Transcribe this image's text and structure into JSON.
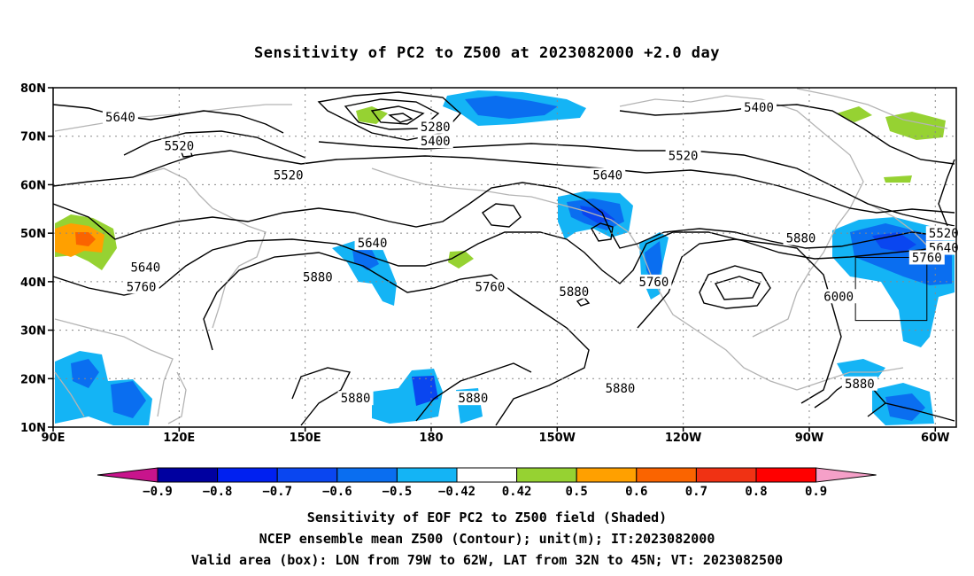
{
  "title": "Sensitivity of PC2 to Z500 at 2023082000 +2.0 day",
  "map": {
    "lat_labels": [
      "80N",
      "70N",
      "60N",
      "50N",
      "40N",
      "30N",
      "20N",
      "10N"
    ],
    "lon_labels": [
      "90E",
      "120E",
      "150E",
      "180",
      "150W",
      "120W",
      "90W",
      "60W"
    ],
    "lon_range": [
      90,
      305
    ],
    "lat_range": [
      10,
      80
    ],
    "gridlines": "dotted",
    "coastline_color": "#b4b4b4",
    "contour_color": "#000000",
    "contour_labels": [
      {
        "text": "5640",
        "lon": 106,
        "lat": 74
      },
      {
        "text": "5520",
        "lon": 120,
        "lat": 68
      },
      {
        "text": "5280",
        "lon": 181,
        "lat": 72
      },
      {
        "text": "5400",
        "lon": 181,
        "lat": 69
      },
      {
        "text": "5520",
        "lon": 146,
        "lat": 62
      },
      {
        "text": "5400",
        "lon": 258,
        "lat": 76
      },
      {
        "text": "5520",
        "lon": 240,
        "lat": 66
      },
      {
        "text": "5640",
        "lon": 222,
        "lat": 62
      },
      {
        "text": "5640",
        "lon": 166,
        "lat": 48
      },
      {
        "text": "5640",
        "lon": 112,
        "lat": 43
      },
      {
        "text": "5880",
        "lon": 153,
        "lat": 41
      },
      {
        "text": "5760",
        "lon": 111,
        "lat": 39
      },
      {
        "text": "5760",
        "lon": 194,
        "lat": 39
      },
      {
        "text": "5880",
        "lon": 214,
        "lat": 38
      },
      {
        "text": "5760",
        "lon": 233,
        "lat": 40
      },
      {
        "text": "5880",
        "lon": 268,
        "lat": 49
      },
      {
        "text": "6000",
        "lon": 277,
        "lat": 37
      },
      {
        "text": "5520",
        "lon": 302,
        "lat": 50
      },
      {
        "text": "5640",
        "lon": 302,
        "lat": 47
      },
      {
        "text": "5760",
        "lon": 298,
        "lat": 45
      },
      {
        "text": "5880",
        "lon": 162,
        "lat": 16
      },
      {
        "text": "5880",
        "lon": 190,
        "lat": 16
      },
      {
        "text": "5880",
        "lon": 225,
        "lat": 18
      },
      {
        "text": "5880",
        "lon": 282,
        "lat": 19
      }
    ],
    "valid_box": {
      "lon_min": 281,
      "lon_max": 298,
      "lat_min": 32,
      "lat_max": 45
    }
  },
  "colorbar": {
    "labels": [
      "-0.9",
      "-0.8",
      "-0.7",
      "-0.6",
      "-0.5",
      "-0.42",
      "0.42",
      "0.5",
      "0.6",
      "0.7",
      "0.8",
      "0.9"
    ],
    "colors": [
      "#c8148c",
      "#0000a0",
      "#0020f0",
      "#0a46f0",
      "#0a6ef0",
      "#14b4f5",
      "#ffffff",
      "#96d232",
      "#ffa000",
      "#fa6400",
      "#f03214",
      "#ff0000",
      "#f5a0c8"
    ]
  },
  "captions": {
    "line1": "Sensitivity of EOF PC2 to Z500 field (Shaded)",
    "line2": "NCEP ensemble mean Z500 (Contour); unit(m); IT:2023082000",
    "line3": "Valid area (box): LON from 79W to 62W, LAT from 32N to 45N; VT: 2023082500"
  }
}
